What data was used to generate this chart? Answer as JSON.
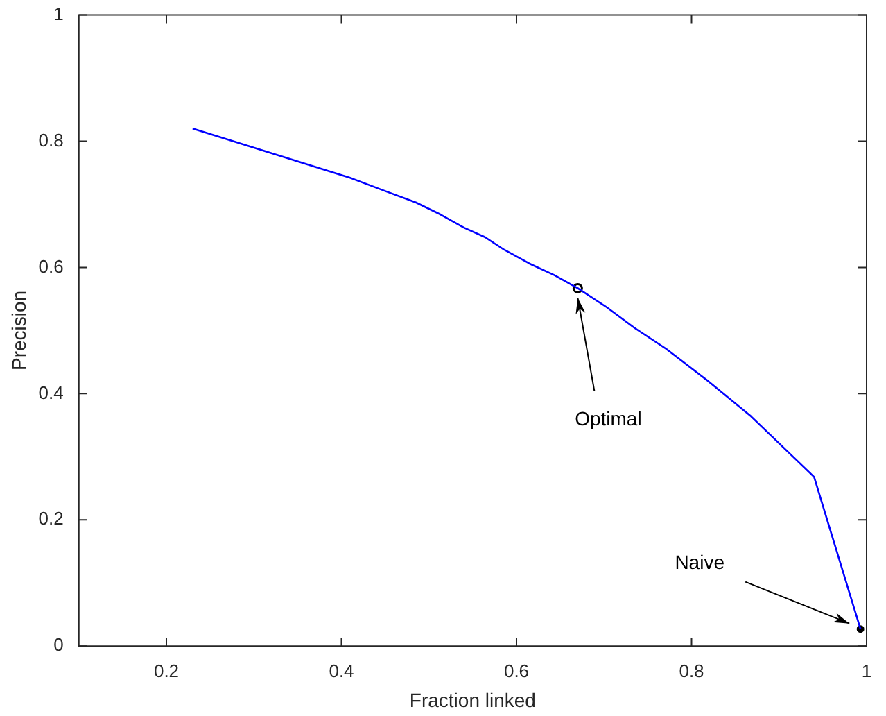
{
  "chart_data": {
    "type": "line",
    "xlabel": "Fraction linked",
    "ylabel": "Precision",
    "xlim": [
      0.1,
      1
    ],
    "xticks": [
      0.2,
      0.4,
      0.6,
      0.8,
      1
    ],
    "ylim": [
      0,
      1
    ],
    "yticks": [
      0,
      0.2,
      0.4,
      0.6,
      0.8,
      1
    ],
    "grid": false,
    "legend": false,
    "series": [
      {
        "color": "#0000ff",
        "marker": "none",
        "x": [
          0.23,
          0.41,
          0.45,
          0.485,
          0.513,
          0.54,
          0.564,
          0.586,
          0.615,
          0.643,
          0.67,
          0.703,
          0.735,
          0.771,
          0.817,
          0.868,
          0.94,
          0.993
        ],
        "values": [
          0.82,
          0.742,
          0.721,
          0.703,
          0.684,
          0.663,
          0.648,
          0.628,
          0.606,
          0.588,
          0.567,
          0.537,
          0.504,
          0.471,
          0.422,
          0.364,
          0.268,
          0.027
        ]
      },
      {
        "type": "scatter",
        "color": "#000000",
        "marker": "circle",
        "x": [
          0.67
        ],
        "values": [
          0.567
        ]
      },
      {
        "type": "scatter",
        "color": "#000000",
        "marker": "circle",
        "x": [
          0.993
        ],
        "values": [
          0.027
        ]
      }
    ],
    "annotations": [
      {
        "text": "Optimal",
        "x": 0.67,
        "y": 0.567
      },
      {
        "text": "Naive",
        "x": 0.993,
        "y": 0.027
      }
    ]
  }
}
